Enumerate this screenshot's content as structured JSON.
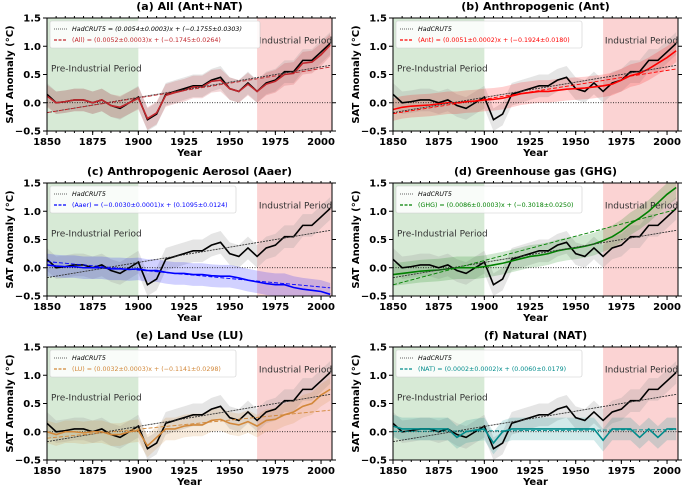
{
  "chart_data": [
    {
      "type": "line",
      "title": "(a) All (Ant+NAT)",
      "key": "All",
      "color": "#c1272d",
      "observed_label": "HadCRUT5 = (0.0054±0.0003)x + (−0.1755±0.0303)",
      "model_label": "(All) = (0.0052±0.0003)x + (−0.1745±0.0264)",
      "fit_obs": [
        0.0054,
        -0.1755
      ],
      "fit_model": [
        0.0052,
        -0.1745
      ],
      "model": [
        0.12,
        0.0,
        0.02,
        0.05,
        0.05,
        0.0,
        0.05,
        -0.05,
        -0.08,
        0.0,
        0.08,
        -0.28,
        -0.18,
        0.13,
        0.18,
        0.22,
        0.28,
        0.28,
        0.38,
        0.4,
        0.25,
        0.2,
        0.33,
        0.2,
        0.33,
        0.38,
        0.5,
        0.52,
        0.7,
        0.72,
        0.85,
        1.02
      ]
    },
    {
      "type": "line",
      "title": "(b) Anthropogenic (Ant)",
      "key": "Ant",
      "color": "#ff0000",
      "observed_label": "HadCRUT5",
      "model_label": "(Ant) = (0.0051±0.0002)x + (−0.1924±0.0180)",
      "fit_obs": [
        0.0054,
        -0.1755
      ],
      "fit_model": [
        0.0051,
        -0.1924
      ],
      "model": [
        -0.12,
        -0.08,
        -0.06,
        -0.05,
        -0.04,
        -0.02,
        0.0,
        0.0,
        0.02,
        0.03,
        0.05,
        0.06,
        0.08,
        0.12,
        0.16,
        0.18,
        0.2,
        0.2,
        0.22,
        0.24,
        0.25,
        0.26,
        0.28,
        0.3,
        0.33,
        0.4,
        0.48,
        0.52,
        0.6,
        0.7,
        0.8,
        0.92
      ]
    },
    {
      "type": "line",
      "title": "(c) Anthropogenic Aerosol (Aaer)",
      "key": "Aaer",
      "color": "#0000ff",
      "observed_label": "HadCRUT5",
      "model_label": "(Aaer) = (−0.0030±0.0001)x + (0.1095±0.0124)",
      "fit_obs": [
        0.0054,
        -0.1755
      ],
      "fit_model": [
        -0.003,
        0.1095
      ],
      "model": [
        0.05,
        0.03,
        0.02,
        0.02,
        0.0,
        0.0,
        0.0,
        -0.02,
        -0.02,
        -0.03,
        -0.02,
        -0.05,
        -0.05,
        -0.08,
        -0.1,
        -0.1,
        -0.12,
        -0.12,
        -0.14,
        -0.15,
        -0.15,
        -0.18,
        -0.22,
        -0.25,
        -0.28,
        -0.3,
        -0.3,
        -0.35,
        -0.38,
        -0.4,
        -0.42,
        -0.47
      ]
    },
    {
      "type": "line",
      "title": "(d) Greenhouse gas (GHG)",
      "key": "GHG",
      "color": "#008000",
      "observed_label": "HadCRUT5",
      "model_label": "(GHG) = (0.0086±0.0003)x + (−0.3018±0.0250)",
      "fit_obs": [
        0.0054,
        -0.1755
      ],
      "fit_model": [
        0.0086,
        -0.3018
      ],
      "model": [
        -0.12,
        -0.1,
        -0.08,
        -0.06,
        -0.05,
        -0.04,
        -0.02,
        0.0,
        0.0,
        0.0,
        0.02,
        0.05,
        0.08,
        0.12,
        0.16,
        0.2,
        0.22,
        0.25,
        0.3,
        0.33,
        0.35,
        0.38,
        0.42,
        0.48,
        0.55,
        0.65,
        0.78,
        0.88,
        1.0,
        1.15,
        1.3,
        1.42
      ]
    },
    {
      "type": "line",
      "title": "(e) Land Use (LU)",
      "key": "LU",
      "color": "#d2883a",
      "observed_label": "HadCRUT5",
      "model_label": "(LU) = (0.0032±0.0003)x + (−0.1141±0.0298)",
      "fit_obs": [
        0.0054,
        -0.1755
      ],
      "fit_model": [
        0.0032,
        -0.1141
      ],
      "model": [
        0.0,
        -0.05,
        0.0,
        0.0,
        -0.02,
        0.0,
        0.0,
        -0.05,
        -0.05,
        0.0,
        0.02,
        -0.25,
        -0.1,
        0.05,
        0.05,
        0.1,
        0.12,
        0.12,
        0.2,
        0.22,
        0.15,
        0.12,
        0.18,
        0.1,
        0.2,
        0.22,
        0.3,
        0.35,
        0.45,
        0.5,
        0.65,
        0.75
      ]
    },
    {
      "type": "line",
      "title": "(f) Natural (NAT)",
      "key": "NAT",
      "color": "#008b8b",
      "observed_label": "HadCRUT5",
      "model_label": "(NAT) = (0.0002±0.0002)x + (0.0060±0.0179)",
      "fit_obs": [
        0.0054,
        -0.1755
      ],
      "fit_model": [
        0.0002,
        0.006
      ],
      "model": [
        0.1,
        0.05,
        0.05,
        0.05,
        0.05,
        0.05,
        0.05,
        -0.1,
        0.0,
        0.03,
        0.05,
        -0.2,
        0.0,
        0.05,
        0.05,
        0.05,
        0.05,
        0.05,
        0.05,
        0.05,
        0.05,
        0.05,
        0.05,
        -0.15,
        0.05,
        0.05,
        0.05,
        -0.1,
        0.05,
        -0.1,
        0.05,
        0.05
      ]
    }
  ],
  "shared": {
    "x_years": [
      1850,
      1855,
      1860,
      1865,
      1870,
      1875,
      1880,
      1885,
      1890,
      1895,
      1900,
      1905,
      1910,
      1915,
      1920,
      1925,
      1930,
      1935,
      1940,
      1945,
      1950,
      1955,
      1960,
      1965,
      1970,
      1975,
      1980,
      1985,
      1990,
      1995,
      2000,
      2005
    ],
    "observed_name": "HadCRUT5",
    "observed_color": "#000000",
    "observed": [
      0.15,
      0.0,
      0.02,
      0.05,
      0.05,
      0.0,
      0.05,
      -0.05,
      -0.1,
      0.0,
      0.1,
      -0.3,
      -0.2,
      0.15,
      0.2,
      0.25,
      0.3,
      0.3,
      0.4,
      0.45,
      0.25,
      0.2,
      0.35,
      0.2,
      0.35,
      0.4,
      0.55,
      0.55,
      0.75,
      0.75,
      0.9,
      1.05
    ],
    "xlabel": "Year",
    "ylabel": "SAT Anomaly (°C)",
    "xlim": [
      1850,
      2006
    ],
    "ylim": [
      -0.5,
      1.5
    ],
    "xticks": [
      1850,
      1875,
      1900,
      1925,
      1950,
      1975,
      2000
    ],
    "yticks": [
      "−0.5",
      "0.0",
      "0.5",
      "1.0",
      "1.5"
    ],
    "ytick_values": [
      -0.5,
      0,
      0.5,
      1,
      1.5
    ],
    "pre_industrial": {
      "label": "Pre-Industrial Period",
      "range": [
        1850,
        1900
      ],
      "color": "#d7ead6"
    },
    "industrial": {
      "label": "Industrial Period",
      "range": [
        1965,
        2006
      ],
      "color": "#fbd3d3"
    },
    "zero_line": "dotted",
    "grid": false,
    "legend": "top-left"
  }
}
